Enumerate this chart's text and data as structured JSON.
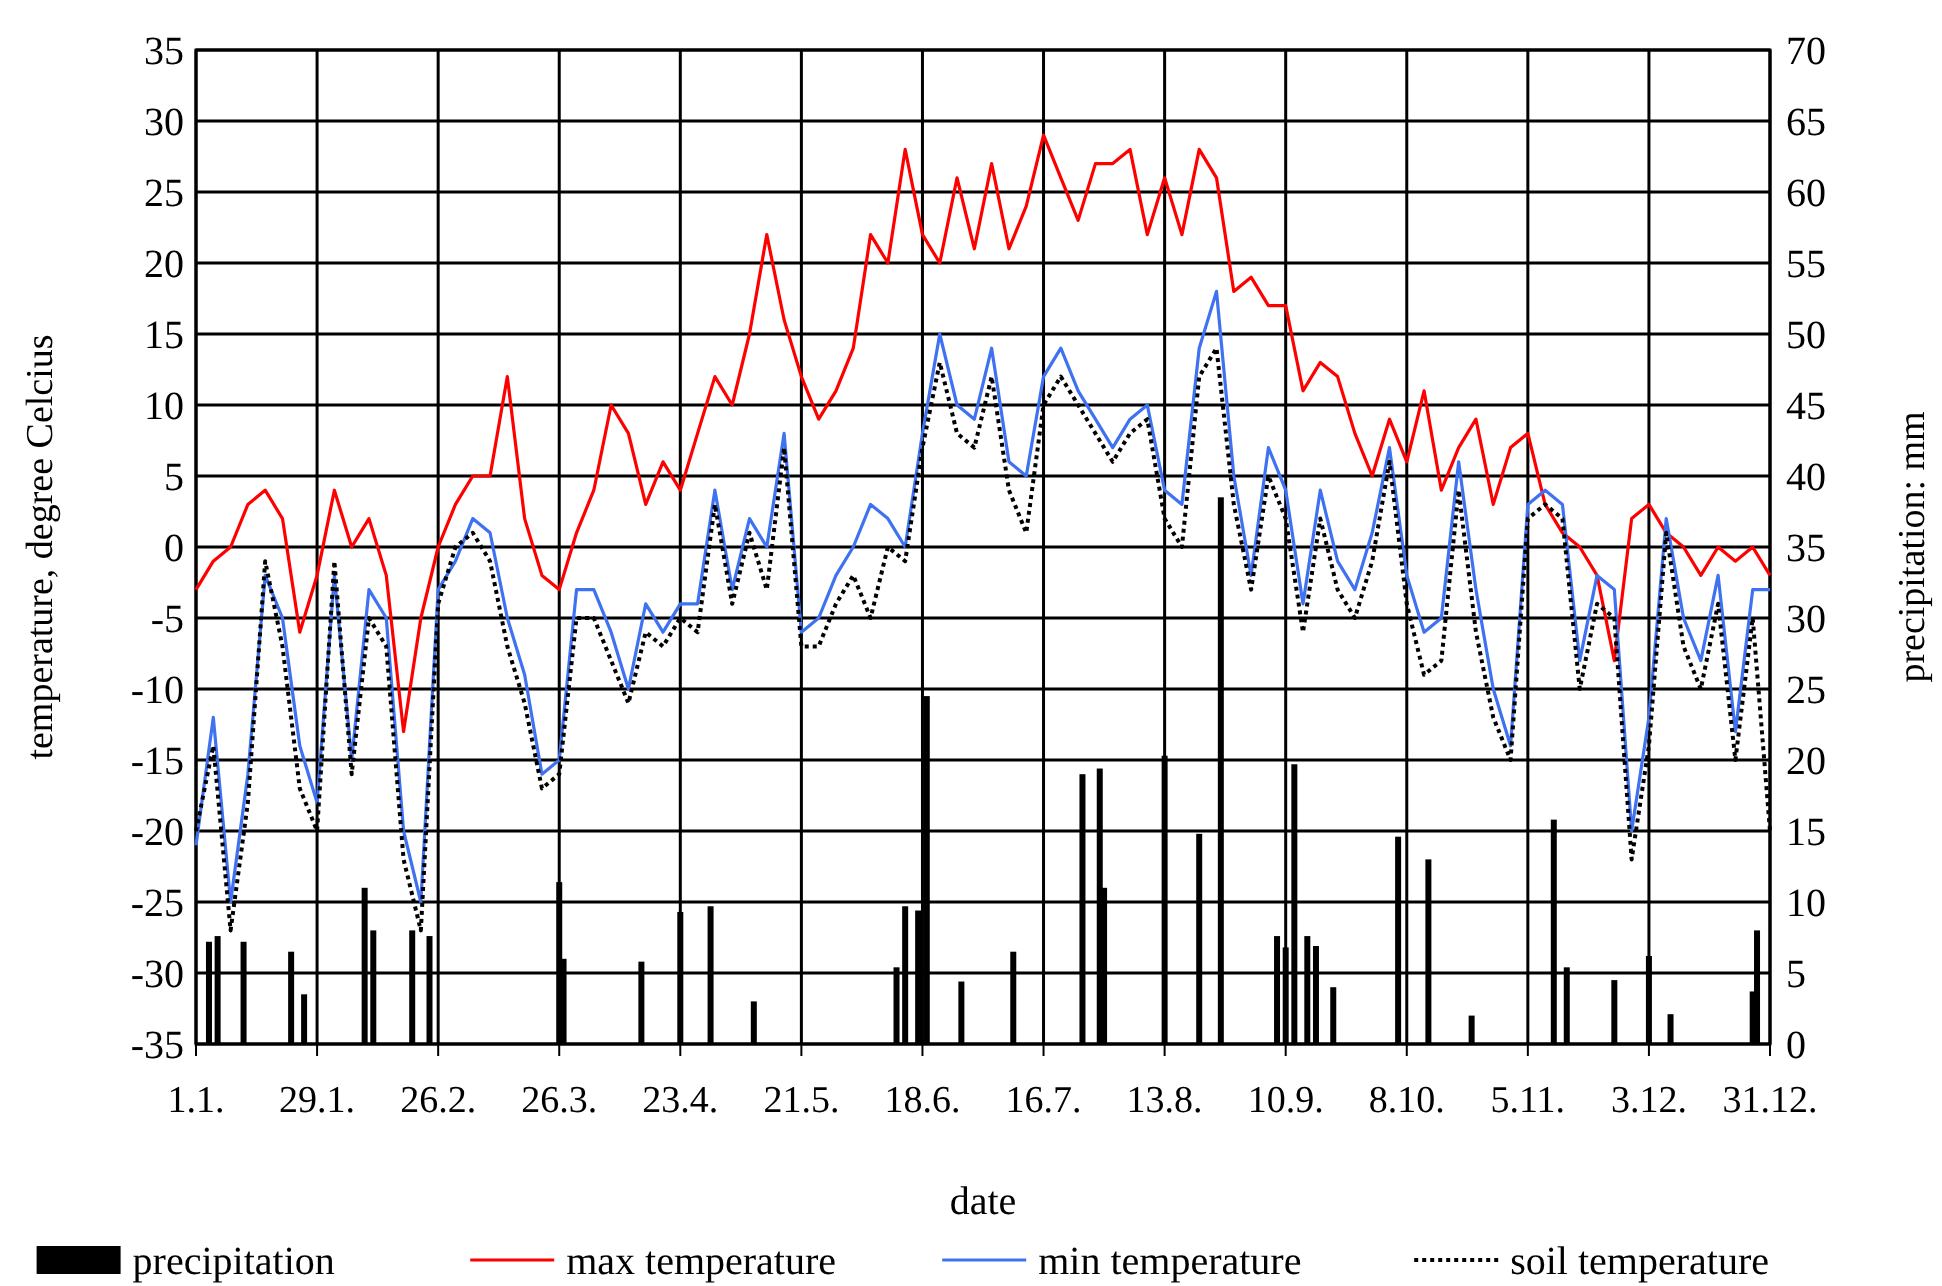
{
  "chart_data": {
    "type": "line",
    "xlabel": "date",
    "ylabel": "temperature, degree Celcius",
    "y2label": "precipitation: mm",
    "xlim": [
      "--01-01",
      "--12-31"
    ],
    "xticks": [
      {
        "value": "--01-01",
        "label": "1.1."
      },
      {
        "value": "--01-29",
        "label": "29.1."
      },
      {
        "value": "--02-26",
        "label": "26.2."
      },
      {
        "value": "--03-26",
        "label": "26.3."
      },
      {
        "value": "--04-23",
        "label": "23.4."
      },
      {
        "value": "--05-21",
        "label": "21.5."
      },
      {
        "value": "--06-18",
        "label": "18.6."
      },
      {
        "value": "--07-16",
        "label": "16.7."
      },
      {
        "value": "--08-13",
        "label": "13.8."
      },
      {
        "value": "--09-10",
        "label": "10.9."
      },
      {
        "value": "--10-08",
        "label": "8.10."
      },
      {
        "value": "--11-05",
        "label": "5.11."
      },
      {
        "value": "--12-03",
        "label": "3.12."
      },
      {
        "value": "--12-31",
        "label": "31.12."
      }
    ],
    "ylim": [
      -35,
      35
    ],
    "yticks": [
      -35,
      -30,
      -25,
      -20,
      -15,
      -10,
      -5,
      0,
      5,
      10,
      15,
      20,
      25,
      30,
      35
    ],
    "y2lim": [
      0,
      70
    ],
    "y2ticks": [
      0,
      5,
      10,
      15,
      20,
      25,
      30,
      35,
      40,
      45,
      50,
      55,
      60,
      65,
      70
    ],
    "grid": true,
    "legend": "bottom",
    "x": [
      "--01-01",
      "--01-05",
      "--01-09",
      "--01-13",
      "--01-17",
      "--01-21",
      "--01-25",
      "--01-29",
      "--02-02",
      "--02-06",
      "--02-10",
      "--02-14",
      "--02-18",
      "--02-22",
      "--02-26",
      "--03-02",
      "--03-06",
      "--03-10",
      "--03-14",
      "--03-18",
      "--03-22",
      "--03-26",
      "--03-30",
      "--04-03",
      "--04-07",
      "--04-11",
      "--04-15",
      "--04-19",
      "--04-23",
      "--04-27",
      "--05-01",
      "--05-05",
      "--05-09",
      "--05-13",
      "--05-17",
      "--05-21",
      "--05-25",
      "--05-29",
      "--06-02",
      "--06-06",
      "--06-10",
      "--06-14",
      "--06-18",
      "--06-22",
      "--06-26",
      "--06-30",
      "--07-04",
      "--07-08",
      "--07-12",
      "--07-16",
      "--07-20",
      "--07-24",
      "--07-28",
      "--08-01",
      "--08-05",
      "--08-09",
      "--08-13",
      "--08-17",
      "--08-21",
      "--08-25",
      "--08-29",
      "--09-02",
      "--09-06",
      "--09-10",
      "--09-14",
      "--09-18",
      "--09-22",
      "--09-26",
      "--09-30",
      "--10-04",
      "--10-08",
      "--10-12",
      "--10-16",
      "--10-20",
      "--10-24",
      "--10-28",
      "--11-01",
      "--11-05",
      "--11-09",
      "--11-13",
      "--11-17",
      "--11-21",
      "--11-25",
      "--11-29",
      "--12-03",
      "--12-07",
      "--12-11",
      "--12-15",
      "--12-19",
      "--12-23",
      "--12-27",
      "--12-31"
    ],
    "series": [
      {
        "name": "precipitation",
        "type": "bar",
        "axis": "y2",
        "color": "#000000",
        "x": [
          "--01-04",
          "--01-06",
          "--01-12",
          "--01-23",
          "--01-26",
          "--02-09",
          "--02-11",
          "--02-20",
          "--02-24",
          "--03-26",
          "--03-27",
          "--04-14",
          "--04-23",
          "--04-30",
          "--05-10",
          "--06-12",
          "--06-14",
          "--06-17",
          "--06-19",
          "--06-27",
          "--07-09",
          "--07-25",
          "--07-29",
          "--07-30",
          "--08-13",
          "--08-21",
          "--08-26",
          "--09-08",
          "--09-10",
          "--09-12",
          "--09-15",
          "--09-17",
          "--09-21",
          "--10-06",
          "--10-13",
          "--10-23",
          "--11-11",
          "--11-14",
          "--11-25",
          "--12-03",
          "--12-08",
          "--12-27",
          "--12-28"
        ],
        "values": [
          7.2,
          7.6,
          7.2,
          6.5,
          3.5,
          11,
          8,
          8,
          7.6,
          11.4,
          6,
          5.8,
          9.3,
          9.7,
          3,
          5.4,
          9.7,
          9.4,
          24.5,
          4.4,
          6.5,
          19,
          19.4,
          11,
          20.3,
          14.8,
          38.5,
          7.6,
          6.8,
          19.7,
          7.6,
          6.9,
          4,
          14.6,
          13,
          2,
          15.8,
          5.4,
          4.5,
          6.2,
          2.1,
          3.7,
          8
        ]
      },
      {
        "name": "max temperature",
        "color": "#ff0000",
        "line_style": "solid",
        "values": [
          -3,
          -1,
          0,
          3,
          4,
          2,
          -6,
          -2,
          4,
          0,
          2,
          -2,
          -13,
          -5,
          0,
          3,
          5,
          5,
          12,
          2,
          -2,
          -3,
          1,
          4,
          10,
          8,
          3,
          6,
          4,
          8,
          12,
          10,
          15,
          22,
          16,
          12,
          9,
          11,
          14,
          22,
          20,
          28,
          22,
          20,
          26,
          21,
          27,
          21,
          24,
          29,
          26,
          23,
          27,
          27,
          28,
          22,
          26,
          22,
          28,
          26,
          18,
          19,
          17,
          17,
          11,
          13,
          12,
          8,
          5,
          9,
          6,
          11,
          4,
          7,
          9,
          3,
          7,
          8,
          3,
          1,
          0,
          -2,
          -8,
          2,
          3,
          1,
          0,
          -2,
          0,
          -1,
          0,
          -2
        ]
      },
      {
        "name": "min temperature",
        "color": "#3f72f0",
        "line_style": "solid",
        "values": [
          -21,
          -12,
          -25,
          -16,
          -2,
          -5,
          -14,
          -18,
          -2,
          -15,
          -3,
          -5,
          -20,
          -25,
          -3,
          -1,
          2,
          1,
          -5,
          -9,
          -16,
          -15,
          -3,
          -3,
          -6,
          -10,
          -4,
          -6,
          -4,
          -4,
          4,
          -3,
          2,
          0,
          8,
          -6,
          -5,
          -2,
          0,
          3,
          2,
          0,
          8,
          15,
          10,
          9,
          14,
          6,
          5,
          12,
          14,
          11,
          9,
          7,
          9,
          10,
          4,
          3,
          14,
          18,
          5,
          -2,
          7,
          4,
          -4,
          4,
          -1,
          -3,
          1,
          7,
          -2,
          -6,
          -5,
          6,
          -3,
          -10,
          -14,
          3,
          4,
          3,
          -8,
          -2,
          -3,
          -20,
          -12,
          2,
          -5,
          -8,
          -2,
          -13,
          -3,
          -3
        ]
      },
      {
        "name": "soil temperature",
        "color": "#000000",
        "line_style": "dotted",
        "values": [
          -20,
          -14,
          -27,
          -18,
          -1,
          -7,
          -17,
          -20,
          -1,
          -16,
          -5,
          -7,
          -22,
          -27,
          -4,
          0,
          1,
          -1,
          -7,
          -11,
          -17,
          -16,
          -5,
          -5,
          -8,
          -11,
          -6,
          -7,
          -5,
          -6,
          3,
          -4,
          1,
          -3,
          7,
          -7,
          -7,
          -4,
          -2,
          -5,
          0,
          -1,
          7,
          13,
          8,
          7,
          12,
          4,
          1,
          10,
          12,
          10,
          8,
          6,
          8,
          9,
          2,
          0,
          12,
          14,
          3,
          -3,
          5,
          2,
          -6,
          2,
          -3,
          -5,
          -1,
          6,
          -4,
          -9,
          -8,
          4,
          -6,
          -12,
          -15,
          2,
          3,
          2,
          -10,
          -4,
          -5,
          -22,
          -14,
          1,
          -7,
          -10,
          -4,
          -15,
          -5,
          -20
        ]
      }
    ]
  }
}
